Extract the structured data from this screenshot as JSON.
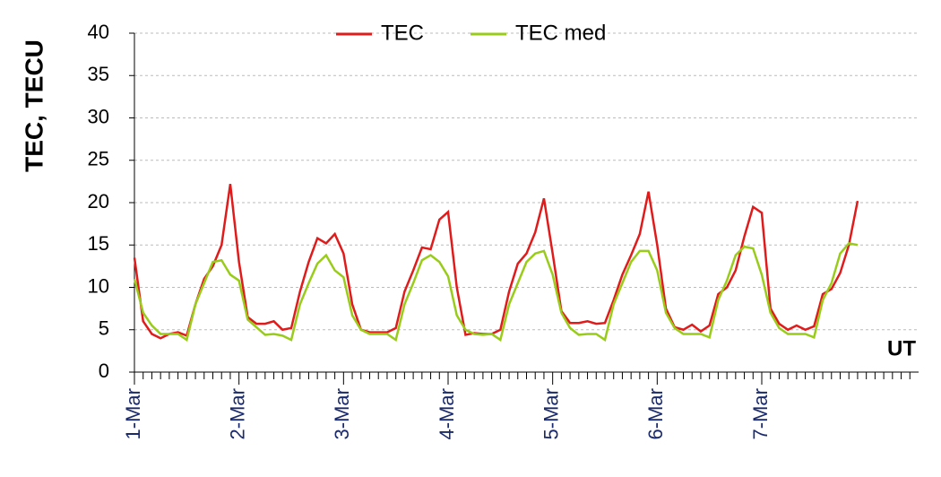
{
  "chart_data": {
    "type": "line",
    "y_label": "TEC, TECU",
    "x_label": "UT",
    "categories": [
      "1-Mar",
      null,
      null,
      null,
      null,
      null,
      null,
      null,
      null,
      null,
      null,
      null,
      "2-Mar",
      null,
      null,
      null,
      null,
      null,
      null,
      null,
      null,
      null,
      null,
      null,
      "3-Mar",
      null,
      null,
      null,
      null,
      null,
      null,
      null,
      null,
      null,
      null,
      null,
      "4-Mar",
      null,
      null,
      null,
      null,
      null,
      null,
      null,
      null,
      null,
      null,
      null,
      "5-Mar",
      null,
      null,
      null,
      null,
      null,
      null,
      null,
      null,
      null,
      null,
      null,
      "6-Mar",
      null,
      null,
      null,
      null,
      null,
      null,
      null,
      null,
      null,
      null,
      null,
      "7-Mar",
      null,
      null,
      null,
      null,
      null,
      null,
      null,
      null,
      null,
      null,
      null,
      null,
      null,
      null,
      null,
      null,
      null
    ],
    "series": [
      {
        "name": "TEC",
        "color": "#e01b1b",
        "values": [
          13.5,
          6,
          4.5,
          4,
          4.5,
          4.7,
          4.3,
          8,
          11,
          12.5,
          15,
          22.2,
          13,
          6.5,
          5.7,
          5.7,
          6,
          5,
          5.2,
          9.5,
          13,
          15.8,
          15.2,
          16.3,
          14,
          8,
          5,
          4.7,
          4.7,
          4.7,
          5.2,
          9.5,
          12,
          14.7,
          14.5,
          18,
          18.9,
          10,
          4.4,
          4.6,
          4.5,
          4.5,
          5,
          9.5,
          12.8,
          14,
          16.5,
          20.5,
          14,
          7.2,
          5.8,
          5.8,
          6,
          5.7,
          5.8,
          8.5,
          11.5,
          13.8,
          16.3,
          21.3,
          15,
          7.5,
          5.3,
          5,
          5.6,
          4.8,
          5.5,
          9.2,
          10,
          12,
          16,
          19.5,
          18.8,
          7.5,
          5.7,
          5,
          5.5,
          5,
          5.4,
          9.2,
          9.8,
          11.7,
          15,
          20.2,
          null,
          null,
          null,
          null,
          null,
          null
        ]
      },
      {
        "name": "TEC med",
        "color": "#99cc1a",
        "values": [
          11,
          7,
          5.5,
          4.5,
          4.5,
          4.5,
          3.8,
          8,
          10.5,
          13,
          13.2,
          11.5,
          10.8,
          6.2,
          5.3,
          4.4,
          4.5,
          4.3,
          3.8,
          8,
          10.5,
          12.8,
          13.8,
          12,
          11.2,
          6.7,
          5,
          4.5,
          4.5,
          4.5,
          3.8,
          8,
          10.5,
          13.2,
          13.8,
          13,
          11.3,
          6.7,
          5,
          4.5,
          4.4,
          4.5,
          3.8,
          8,
          10.5,
          13,
          14,
          14.3,
          11.5,
          7,
          5.2,
          4.4,
          4.5,
          4.5,
          3.8,
          8,
          10.5,
          13,
          14.3,
          14.3,
          12,
          7,
          5.2,
          4.5,
          4.5,
          4.5,
          4.1,
          8.5,
          10.8,
          13.8,
          14.8,
          14.6,
          11.5,
          7,
          5.2,
          4.5,
          4.5,
          4.5,
          4.1,
          8.5,
          10.5,
          14,
          15.2,
          15,
          null,
          null,
          null,
          null,
          null,
          null
        ]
      }
    ],
    "ylim": [
      0,
      40
    ],
    "yticks": [
      0,
      5,
      10,
      15,
      20,
      25,
      30,
      35,
      40
    ],
    "grid": true,
    "legend": "top"
  }
}
